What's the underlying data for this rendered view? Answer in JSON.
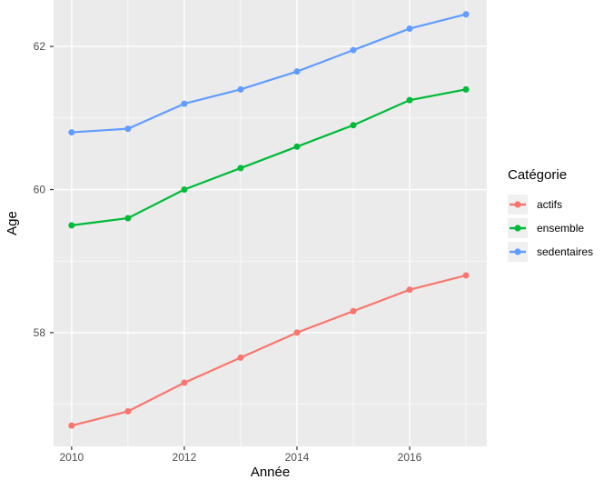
{
  "chart_data": {
    "type": "line",
    "title": "",
    "xlabel": "Année",
    "ylabel": "Age",
    "x": [
      2010,
      2011,
      2012,
      2013,
      2014,
      2015,
      2016,
      2017
    ],
    "series": [
      {
        "name": "actifs",
        "color": "#F8766D",
        "values": [
          56.7,
          56.9,
          57.3,
          57.65,
          58.0,
          58.3,
          58.6,
          58.8
        ]
      },
      {
        "name": "ensemble",
        "color": "#00BA38",
        "values": [
          59.5,
          59.6,
          60.0,
          60.3,
          60.6,
          60.9,
          61.25,
          61.4
        ]
      },
      {
        "name": "sedentaires",
        "color": "#619CFF",
        "values": [
          60.8,
          60.85,
          61.2,
          61.4,
          61.65,
          61.95,
          62.25,
          62.45
        ]
      }
    ],
    "xlim": [
      2009.68,
      2017.37
    ],
    "ylim": [
      56.41,
      62.65
    ],
    "x_major_ticks": [
      2010,
      2012,
      2014,
      2016
    ],
    "x_minor_ticks": [
      2011,
      2013,
      2015,
      2017
    ],
    "y_major_ticks": [
      58,
      60,
      62
    ],
    "y_minor_ticks": [
      57,
      59,
      61
    ],
    "x_tick_labels": [
      "2010",
      "2012",
      "2014",
      "2016"
    ],
    "y_tick_labels": [
      "58",
      "60",
      "62"
    ],
    "grid": true,
    "legend_position": "right",
    "panel_background": "#EBEBEB",
    "grid_color": "#FFFFFF",
    "tick_color": "#333333",
    "tick_label_color": "#4D4D4D"
  },
  "axes": {
    "x_title": "Année",
    "y_title": "Age"
  },
  "legend": {
    "title": "Catégorie",
    "items": [
      {
        "label": "actifs",
        "color": "#F8766D"
      },
      {
        "label": "ensemble",
        "color": "#00BA38"
      },
      {
        "label": "sedentaires",
        "color": "#619CFF"
      }
    ]
  }
}
